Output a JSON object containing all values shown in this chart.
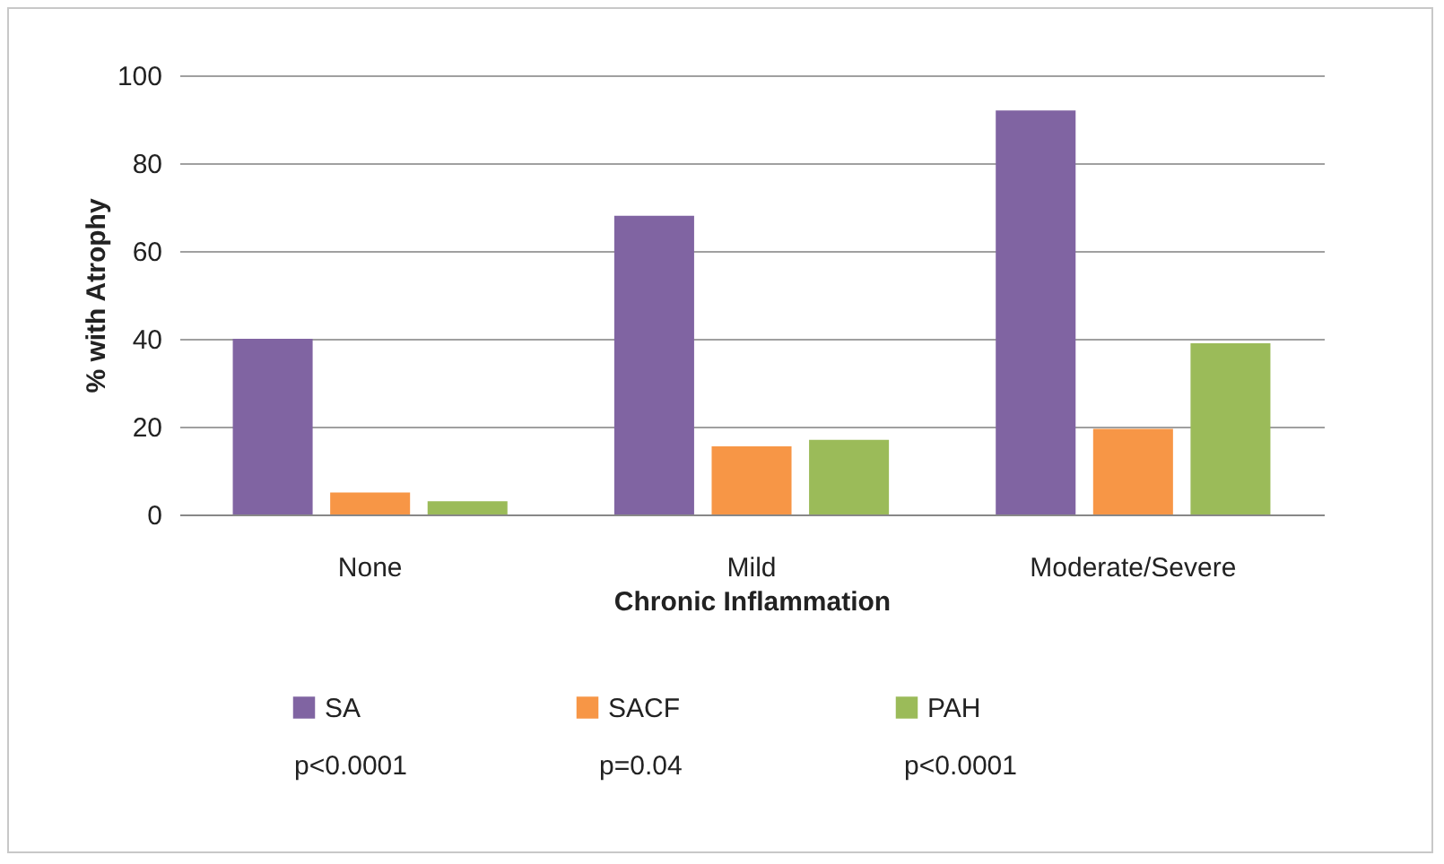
{
  "chart_data": {
    "type": "bar",
    "xlabel": "Chronic Inflammation",
    "ylabel": "% with Atrophy",
    "categories": [
      "None",
      "Mild",
      "Moderate/Severe"
    ],
    "series": [
      {
        "name": "SA",
        "color": "#8064a2",
        "values": [
          40,
          68,
          92
        ]
      },
      {
        "name": "SACF",
        "color": "#f79646",
        "values": [
          5,
          15.5,
          19.5
        ]
      },
      {
        "name": "PAH",
        "color": "#9bbb59",
        "values": [
          3,
          17,
          39
        ]
      }
    ],
    "ylim": [
      0,
      100
    ],
    "yticks": [
      0,
      20,
      40,
      60,
      80,
      100
    ],
    "grid": "y",
    "legend": "bottom",
    "annotations": [
      "p<0.0001",
      "p=0.04",
      "p<0.0001"
    ]
  }
}
